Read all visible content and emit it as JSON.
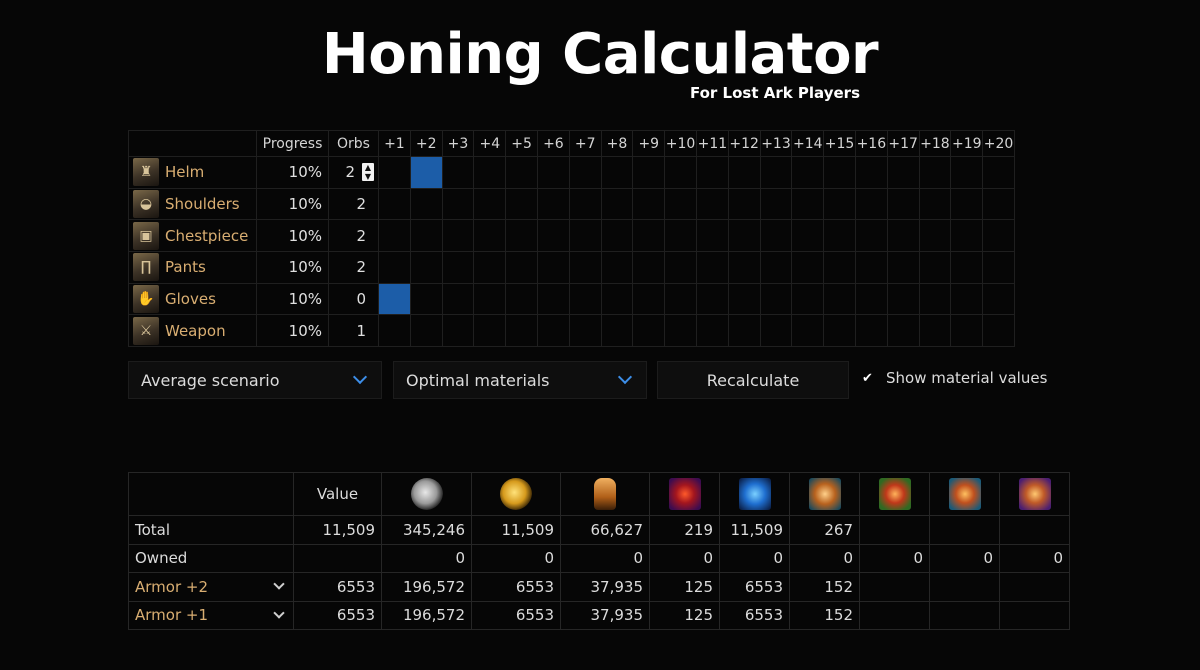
{
  "header": {
    "title": "Honing Calculator",
    "subtitle": "For Lost Ark Players"
  },
  "grid": {
    "columns": {
      "progress": "Progress",
      "orbs": "Orbs"
    },
    "levels": [
      "+1",
      "+2",
      "+3",
      "+4",
      "+5",
      "+6",
      "+7",
      "+8",
      "+9",
      "+10",
      "+11",
      "+12",
      "+13",
      "+14",
      "+15",
      "+16",
      "+17",
      "+18",
      "+19",
      "+20"
    ],
    "items": [
      {
        "name": "Helm",
        "icon": "helm-icon",
        "progress": "10%",
        "orbs": "2",
        "current_level": "+2",
        "has_stepper": true
      },
      {
        "name": "Shoulders",
        "icon": "shoulders-icon",
        "progress": "10%",
        "orbs": "2",
        "current_level": null
      },
      {
        "name": "Chestpiece",
        "icon": "chestpiece-icon",
        "progress": "10%",
        "orbs": "2",
        "current_level": null
      },
      {
        "name": "Pants",
        "icon": "pants-icon",
        "progress": "10%",
        "orbs": "2",
        "current_level": null
      },
      {
        "name": "Gloves",
        "icon": "gloves-icon",
        "progress": "10%",
        "orbs": "0",
        "current_level": "+1"
      },
      {
        "name": "Weapon",
        "icon": "weapon-icon",
        "progress": "10%",
        "orbs": "1",
        "current_level": null
      }
    ],
    "highlight_color": "#1c5da8"
  },
  "controls": {
    "scenario": "Average scenario",
    "materials": "Optimal materials",
    "recalculate": "Recalculate",
    "show_values_label": "Show material values",
    "show_values_checked": true,
    "accent_color": "#3d8ee8"
  },
  "materials_table": {
    "value_header": "Value",
    "material_icons": [
      "silver-icon",
      "gold-icon",
      "honor-shard-icon",
      "destruction-stone-icon",
      "guardian-stone-icon",
      "leapstone-icon",
      "solar-grace-icon",
      "solar-blessing-icon",
      "solar-protection-icon"
    ],
    "rows": [
      {
        "label": "Total",
        "kind": "plain",
        "cells": [
          "11,509",
          "345,246",
          "11,509",
          "66,627",
          "219",
          "11,509",
          "267",
          "",
          "",
          ""
        ]
      },
      {
        "label": "Owned",
        "kind": "plain",
        "cells": [
          "",
          "0",
          "0",
          "0",
          "0",
          "0",
          "0",
          "0",
          "0",
          "0"
        ]
      },
      {
        "label": "Armor +2",
        "kind": "armor",
        "cells": [
          "6553",
          "196,572",
          "6553",
          "37,935",
          "125",
          "6553",
          "152",
          "",
          "",
          ""
        ]
      },
      {
        "label": "Armor +1",
        "kind": "armor",
        "cells": [
          "6553",
          "196,572",
          "6553",
          "37,935",
          "125",
          "6553",
          "152",
          "",
          "",
          ""
        ]
      }
    ],
    "armor_label_color": "#d9ae72"
  }
}
